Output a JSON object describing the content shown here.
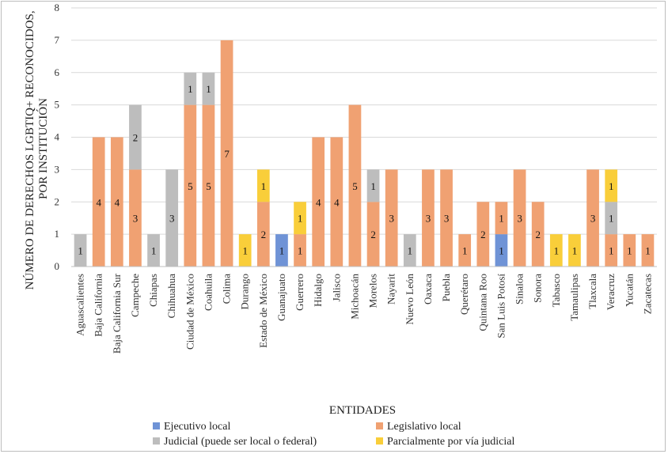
{
  "chart_data": {
    "type": "bar",
    "stacked": true,
    "xlabel": "ENTIDADES",
    "ylabel_line1": "NÚMERO DE DERECHOS LGBTIQ+ RECONOCIDOS,",
    "ylabel_line2": "POR INSTITUCIÓN",
    "ylim": [
      0,
      8
    ],
    "yticks": [
      0,
      1,
      2,
      3,
      4,
      5,
      6,
      7,
      8
    ],
    "grid": true,
    "legend_position": "bottom",
    "categories": [
      "Aguascalientes",
      "Baja California",
      "Baja California Sur",
      "Campeche",
      "Chiapas",
      "Chihuahua",
      "Ciudad de México",
      "Coahuila",
      "Colima",
      "Durango",
      "Estado de México",
      "Guanajuato",
      "Guerrero",
      "Hidalgo",
      "Jalisco",
      "Michoacán",
      "Morelos",
      "Nayarit",
      "Nuevo León",
      "Oaxaca",
      "Puebla",
      "Querétaro",
      "Quintana Roo",
      "San Luis Potosí",
      "Sinaloa",
      "Sonora",
      "Tabasco",
      "Tamaulipas",
      "Tlaxcala",
      "Veracruz",
      "Yucatán",
      "Zacatecas"
    ],
    "series": [
      {
        "name": "Ejecutivo local",
        "color": "#6f93d6",
        "values": [
          0,
          0,
          0,
          0,
          0,
          0,
          0,
          0,
          0,
          0,
          0,
          1,
          0,
          0,
          0,
          0,
          0,
          0,
          0,
          0,
          0,
          0,
          0,
          1,
          0,
          0,
          0,
          0,
          0,
          0,
          0,
          0
        ]
      },
      {
        "name": "Legislativo local",
        "color": "#f0a172",
        "values": [
          0,
          4,
          4,
          3,
          0,
          0,
          5,
          5,
          7,
          0,
          2,
          0,
          1,
          4,
          4,
          5,
          2,
          3,
          0,
          3,
          3,
          1,
          2,
          1,
          3,
          2,
          0,
          0,
          3,
          1,
          1,
          1
        ]
      },
      {
        "name": "Judicial (puede ser local o federal)",
        "color": "#bdbdbd",
        "values": [
          1,
          0,
          0,
          2,
          1,
          3,
          1,
          1,
          0,
          0,
          0,
          0,
          0,
          0,
          0,
          0,
          1,
          0,
          1,
          0,
          0,
          0,
          0,
          0,
          0,
          0,
          0,
          0,
          0,
          1,
          0,
          0
        ]
      },
      {
        "name": "Parcialmente por vía judicial",
        "color": "#f9ce3a",
        "values": [
          0,
          0,
          0,
          0,
          0,
          0,
          0,
          0,
          0,
          1,
          1,
          0,
          1,
          0,
          0,
          0,
          0,
          0,
          0,
          0,
          0,
          0,
          0,
          0,
          0,
          0,
          1,
          1,
          0,
          1,
          0,
          0
        ]
      }
    ]
  }
}
